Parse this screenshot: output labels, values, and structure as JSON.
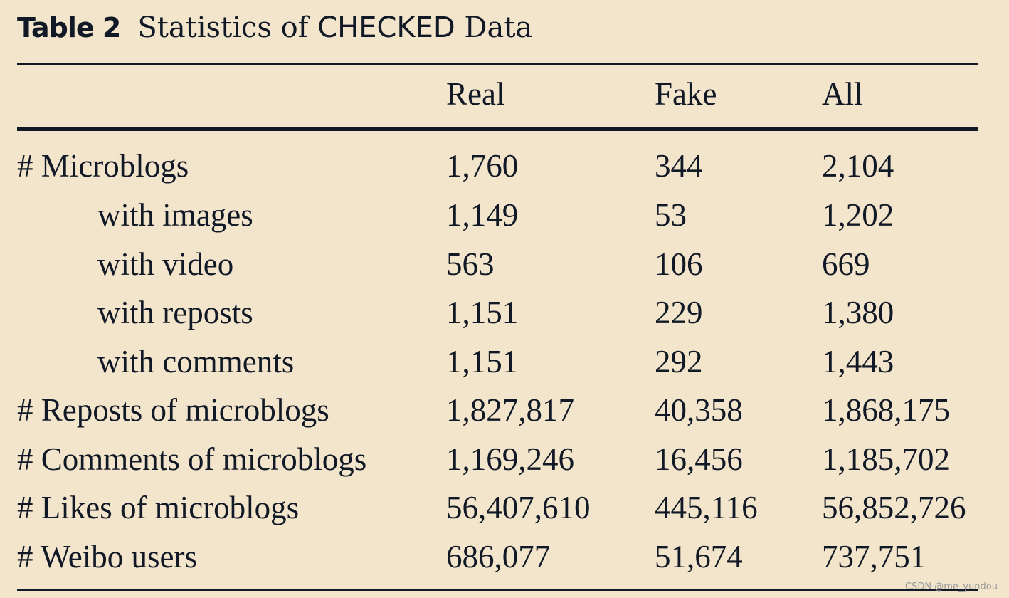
{
  "caption": {
    "label": "Table 2",
    "text": "Statistics of ",
    "dataset": "CHECKED",
    "suffix": " Data"
  },
  "header": {
    "real": "Real",
    "fake": "Fake",
    "all": "All"
  },
  "rows": [
    {
      "label": "# Microblogs",
      "real": "1,760",
      "fake": "344",
      "all": "2,104"
    },
    {
      "label": "with images",
      "real": "1,149",
      "fake": "53",
      "all": "1,202"
    },
    {
      "label": "with video",
      "real": "563",
      "fake": "106",
      "all": "669"
    },
    {
      "label": "with reposts",
      "real": "1,151",
      "fake": "229",
      "all": "1,380"
    },
    {
      "label": "with comments",
      "real": "1,151",
      "fake": "292",
      "all": "1,443"
    },
    {
      "label": "# Reposts of microblogs",
      "real": "1,827,817",
      "fake": "40,358",
      "all": "1,868,175"
    },
    {
      "label": "# Comments of microblogs",
      "real": "1,169,246",
      "fake": "16,456",
      "all": "1,185,702"
    },
    {
      "label": "# Likes of microblogs",
      "real": "56,407,610",
      "fake": "445,116",
      "all": "56,852,726"
    },
    {
      "label": "# Weibo users",
      "real": "686,077",
      "fake": "51,674",
      "all": "737,751"
    }
  ],
  "watermark": "CSDN @me_yundou"
}
